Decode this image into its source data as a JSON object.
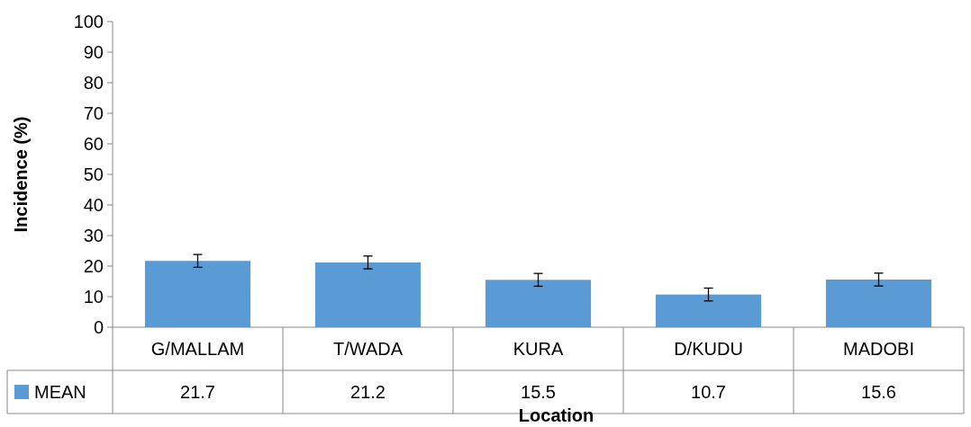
{
  "chart_data": {
    "type": "bar",
    "xlabel": "Location",
    "ylabel": "Incidence (%)",
    "categories": [
      "G/MALLAM",
      "T/WADA",
      "KURA",
      "D/KUDU",
      "MADOBI"
    ],
    "series": [
      {
        "name": "MEAN",
        "color": "#5b9bd5",
        "values": [
          21.7,
          21.2,
          15.5,
          10.7,
          15.6
        ],
        "errors": [
          2.1,
          2.1,
          2.1,
          2.1,
          2.1
        ]
      }
    ],
    "ylim": [
      0,
      100
    ],
    "yticks": [
      0,
      10,
      20,
      30,
      40,
      50,
      60,
      70,
      80,
      90,
      100
    ],
    "grid": false,
    "legend": "bottom",
    "data_labels": true
  }
}
